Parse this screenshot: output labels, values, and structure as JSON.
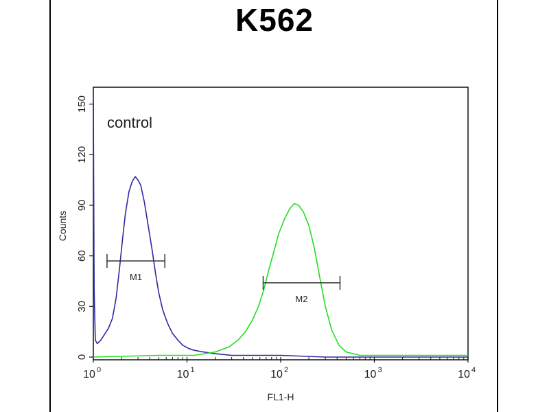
{
  "chart_data": {
    "type": "line",
    "title": "K562",
    "xlabel": "FL1-H",
    "ylabel": "Counts",
    "x_scale": "log",
    "xlim": [
      1,
      10000
    ],
    "ylim": [
      0,
      160
    ],
    "x_ticks": [
      {
        "base": "10",
        "exp": "0",
        "value": 1
      },
      {
        "base": "10",
        "exp": "1",
        "value": 10
      },
      {
        "base": "10",
        "exp": "2",
        "value": 100
      },
      {
        "base": "10",
        "exp": "3",
        "value": 1000
      },
      {
        "base": "10",
        "exp": "4",
        "value": 10000
      }
    ],
    "y_ticks": [
      "0",
      "30",
      "60",
      "90",
      "120",
      "150"
    ],
    "y_tick_values": [
      0,
      30,
      60,
      90,
      120,
      150
    ],
    "annotation": "control",
    "grid": false,
    "series": [
      {
        "color": "#2a2aa0",
        "points": [
          [
            1.0,
            152
          ],
          [
            1.02,
            40
          ],
          [
            1.05,
            10
          ],
          [
            1.1,
            8
          ],
          [
            1.2,
            10
          ],
          [
            1.3,
            13
          ],
          [
            1.45,
            17
          ],
          [
            1.6,
            23
          ],
          [
            1.75,
            35
          ],
          [
            1.9,
            52
          ],
          [
            2.05,
            70
          ],
          [
            2.2,
            85
          ],
          [
            2.4,
            98
          ],
          [
            2.6,
            104
          ],
          [
            2.8,
            107
          ],
          [
            3.0,
            105
          ],
          [
            3.2,
            102
          ],
          [
            3.5,
            92
          ],
          [
            3.8,
            80
          ],
          [
            4.2,
            65
          ],
          [
            4.6,
            50
          ],
          [
            5.0,
            38
          ],
          [
            5.5,
            28
          ],
          [
            6.2,
            20
          ],
          [
            7.0,
            14
          ],
          [
            8.0,
            10
          ],
          [
            9.0,
            7
          ],
          [
            10.5,
            5
          ],
          [
            12,
            4
          ],
          [
            15,
            3
          ],
          [
            20,
            2
          ],
          [
            30,
            1
          ],
          [
            50,
            1
          ],
          [
            100,
            1
          ],
          [
            300,
            0
          ],
          [
            1000,
            0
          ],
          [
            3000,
            0
          ],
          [
            10000,
            0
          ]
        ]
      },
      {
        "color": "#22dd22",
        "points": [
          [
            1.0,
            0
          ],
          [
            5,
            1
          ],
          [
            12,
            1
          ],
          [
            20,
            3
          ],
          [
            28,
            6
          ],
          [
            35,
            10
          ],
          [
            42,
            15
          ],
          [
            50,
            22
          ],
          [
            58,
            30
          ],
          [
            66,
            40
          ],
          [
            75,
            52
          ],
          [
            85,
            63
          ],
          [
            95,
            73
          ],
          [
            110,
            82
          ],
          [
            125,
            88
          ],
          [
            140,
            91
          ],
          [
            155,
            90
          ],
          [
            175,
            86
          ],
          [
            200,
            78
          ],
          [
            230,
            64
          ],
          [
            260,
            48
          ],
          [
            300,
            30
          ],
          [
            350,
            16
          ],
          [
            420,
            7
          ],
          [
            500,
            3
          ],
          [
            700,
            1
          ],
          [
            1000,
            1
          ],
          [
            3000,
            1
          ],
          [
            10000,
            1
          ]
        ]
      }
    ],
    "markers": [
      {
        "label": "M1",
        "x_start": 1.4,
        "x_end": 5.8,
        "y": 57,
        "color": "#333333"
      },
      {
        "label": "M2",
        "x_start": 65,
        "x_end": 430,
        "y": 44,
        "color": "#333333"
      }
    ]
  }
}
